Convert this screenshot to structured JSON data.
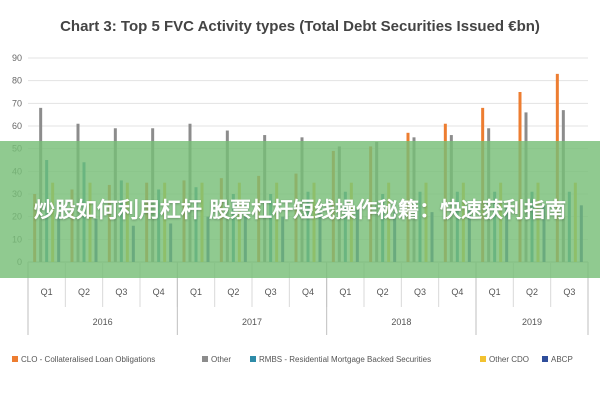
{
  "overlay": {
    "headline": "炒股如何利用杠杆 股票杠杆短线操作秘籍：快速获利指南"
  },
  "chart_data": {
    "type": "bar",
    "title": "Chart 3: Top 5 FVC Activity types (Total Debt Securities Issued €bn)",
    "xlabel": "",
    "ylabel": "",
    "ylim": [
      0,
      90
    ],
    "yticks": [
      0,
      10,
      20,
      30,
      40,
      50,
      60,
      70,
      80,
      90
    ],
    "grid": true,
    "legend_position": "bottom",
    "categories": [
      "Q1",
      "Q2",
      "Q3",
      "Q4",
      "Q1",
      "Q2",
      "Q3",
      "Q4",
      "Q1",
      "Q2",
      "Q3",
      "Q4",
      "Q1",
      "Q2",
      "Q3"
    ],
    "groups": [
      {
        "label": "2016",
        "count": 4
      },
      {
        "label": "2017",
        "count": 4
      },
      {
        "label": "2018",
        "count": 4
      },
      {
        "label": "2019",
        "count": 3
      }
    ],
    "series": [
      {
        "name": "CLO - Collateralised Loan Obligations",
        "color": "#ED7D31",
        "values": [
          30,
          32,
          34,
          35,
          36,
          37,
          38,
          39,
          49,
          51,
          57,
          61,
          68,
          75,
          83
        ]
      },
      {
        "name": "Other",
        "color": "#8C8C8C",
        "values": [
          68,
          61,
          59,
          59,
          61,
          58,
          56,
          55,
          51,
          53,
          55,
          56,
          59,
          66,
          67
        ]
      },
      {
        "name": "RMBS - Residential Mortgage Backed Securities",
        "color": "#2E8BA8",
        "values": [
          45,
          44,
          36,
          32,
          33,
          30,
          30,
          31,
          31,
          30,
          31,
          31,
          31,
          31,
          31
        ]
      },
      {
        "name": "Other CDO",
        "color": "#F2C230",
        "values": [
          35,
          35,
          35,
          35,
          35,
          35,
          35,
          35,
          35,
          35,
          35,
          35,
          35,
          35,
          35
        ]
      },
      {
        "name": "ABCP",
        "color": "#2F4E9B",
        "values": [
          21,
          19,
          16,
          17,
          20,
          20,
          20,
          22,
          23,
          22,
          22,
          23,
          24,
          25,
          25
        ]
      }
    ]
  }
}
